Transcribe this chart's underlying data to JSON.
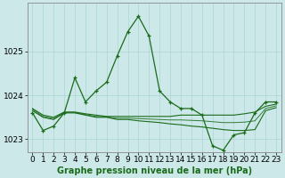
{
  "title": "Graphe pression niveau de la mer (hPa)",
  "bg_color": "#cce8e8",
  "grid_color": "#aad4d4",
  "line_color": "#1a6b1a",
  "xlim": [
    -0.5,
    23.5
  ],
  "ylim": [
    1022.7,
    1026.1
  ],
  "yticks": [
    1023,
    1024,
    1025
  ],
  "xticks": [
    0,
    1,
    2,
    3,
    4,
    5,
    6,
    7,
    8,
    9,
    10,
    11,
    12,
    13,
    14,
    15,
    16,
    17,
    18,
    19,
    20,
    21,
    22,
    23
  ],
  "series1": [
    1023.6,
    1023.2,
    1023.3,
    1023.6,
    1024.4,
    1023.85,
    1024.1,
    1024.3,
    1024.9,
    1025.45,
    1025.8,
    1025.35,
    1024.1,
    1023.85,
    1023.7,
    1023.7,
    1023.55,
    1022.85,
    1022.75,
    1023.1,
    1023.15,
    1023.6,
    1023.85,
    1023.85
  ],
  "series2": [
    1023.65,
    1023.5,
    1023.45,
    1023.6,
    1023.6,
    1023.55,
    1023.5,
    1023.5,
    1023.45,
    1023.45,
    1023.42,
    1023.4,
    1023.38,
    1023.35,
    1023.33,
    1023.3,
    1023.28,
    1023.25,
    1023.22,
    1023.2,
    1023.2,
    1023.22,
    1023.65,
    1023.72
  ],
  "series3": [
    1023.7,
    1023.55,
    1023.5,
    1023.62,
    1023.62,
    1023.58,
    1023.55,
    1023.52,
    1023.52,
    1023.52,
    1023.52,
    1023.52,
    1023.52,
    1023.52,
    1023.55,
    1023.55,
    1023.55,
    1023.55,
    1023.55,
    1023.55,
    1023.58,
    1023.62,
    1023.75,
    1023.8
  ],
  "series4": [
    1023.68,
    1023.52,
    1023.47,
    1023.61,
    1023.61,
    1023.56,
    1023.52,
    1023.51,
    1023.48,
    1023.48,
    1023.47,
    1023.46,
    1023.45,
    1023.44,
    1023.44,
    1023.43,
    1023.42,
    1023.4,
    1023.38,
    1023.38,
    1023.39,
    1023.42,
    1023.7,
    1023.76
  ],
  "xlabel_fontsize": 6.5,
  "ylabel_fontsize": 6.5,
  "title_fontsize": 7.0
}
